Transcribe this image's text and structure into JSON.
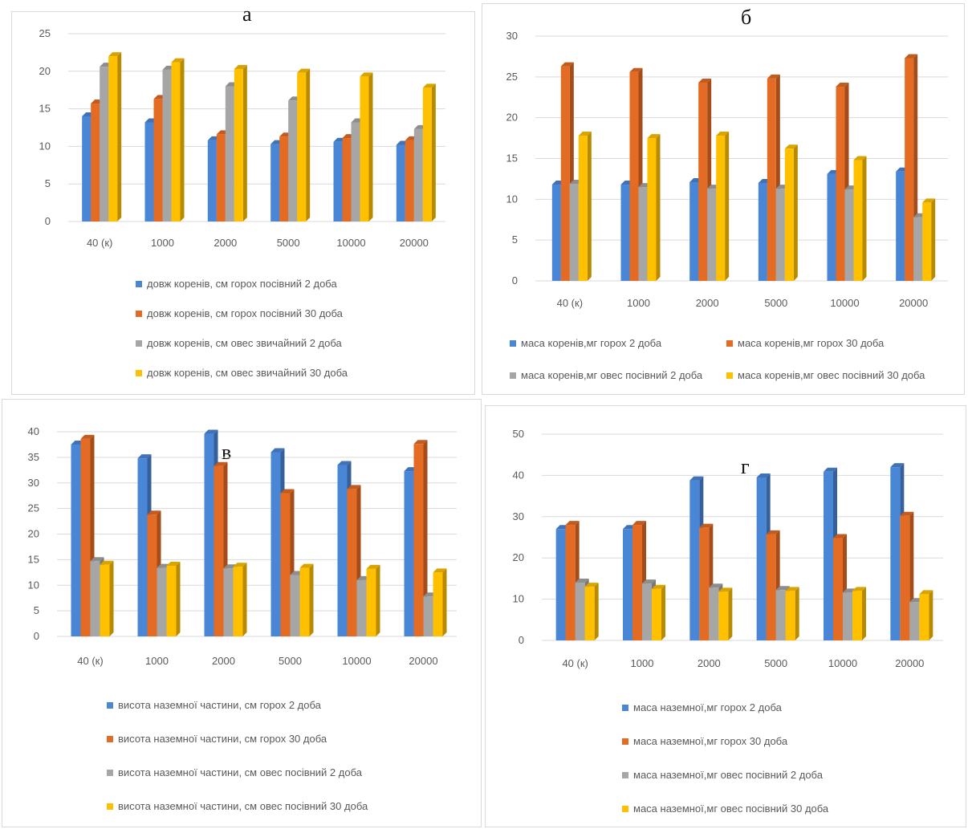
{
  "colors": {
    "blue": "#4a86d6",
    "orange": "#e46b24",
    "gray": "#a6a6a6",
    "yellow": "#ffc000",
    "grid": "#d9d9d9",
    "text": "#595959"
  },
  "chart_data": [
    {
      "type": "bar",
      "panel_label": "а",
      "categories": [
        "40 (к)",
        "1000",
        "2000",
        "5000",
        "10000",
        "20000"
      ],
      "ylim": [
        0,
        25
      ],
      "yticks": [
        "0",
        "5",
        "10",
        "15",
        "20",
        "25"
      ],
      "series": [
        {
          "name": "довж коренів, см горох посівний 2 доба",
          "values": [
            14.0,
            13.2,
            10.8,
            10.3,
            10.6,
            10.2
          ]
        },
        {
          "name": "довж коренів, см горох посівний 30 доба",
          "values": [
            15.7,
            16.3,
            11.6,
            11.3,
            11.1,
            10.8
          ]
        },
        {
          "name": "довж коренів, см овес звичайний 2 доба",
          "values": [
            20.6,
            20.2,
            18.0,
            16.1,
            13.2,
            12.3
          ]
        },
        {
          "name": "довж коренів, см овес звичайний 30 доба",
          "values": [
            22.0,
            21.2,
            20.3,
            19.8,
            19.3,
            17.8
          ]
        }
      ]
    },
    {
      "type": "bar",
      "panel_label": "б",
      "categories": [
        "40 (к)",
        "1000",
        "2000",
        "5000",
        "10000",
        "20000"
      ],
      "ylim": [
        0,
        30
      ],
      "yticks": [
        "0",
        "5",
        "10",
        "15",
        "20",
        "25",
        "30"
      ],
      "series": [
        {
          "name": "маса коренів,мг горох 2 доба",
          "values": [
            11.8,
            11.8,
            12.1,
            12.0,
            13.1,
            13.4
          ]
        },
        {
          "name": "маса коренів,мг горох 30 доба",
          "values": [
            26.3,
            25.6,
            24.3,
            24.8,
            23.8,
            27.3
          ]
        },
        {
          "name": "маса коренів,мг овес посівний 2 доба",
          "values": [
            11.9,
            11.5,
            11.3,
            11.3,
            11.2,
            7.8
          ]
        },
        {
          "name": "маса коренів,мг овес посівний 30 доба",
          "values": [
            17.8,
            17.5,
            17.8,
            16.2,
            14.8,
            9.6
          ]
        }
      ]
    },
    {
      "type": "bar",
      "panel_label": "в",
      "categories": [
        "40 (к)",
        "1000",
        "2000",
        "5000",
        "10000",
        "20000"
      ],
      "ylim": [
        0,
        40
      ],
      "yticks": [
        "0",
        "5",
        "10",
        "15",
        "20",
        "25",
        "30",
        "35",
        "40"
      ],
      "series": [
        {
          "name": "висота наземної частини, см горох 2 доба",
          "values": [
            37.5,
            34.8,
            39.6,
            36.0,
            33.5,
            32.3
          ]
        },
        {
          "name": "висота наземної частини, см горох 30 доба",
          "values": [
            38.6,
            23.8,
            33.3,
            28.0,
            28.8,
            37.6
          ]
        },
        {
          "name": "висота наземної частини, см овес посівний 2 доба",
          "values": [
            14.7,
            13.4,
            13.3,
            12.0,
            11.0,
            7.8
          ]
        },
        {
          "name": "висота наземної частини, см овес посівний 30 доба",
          "values": [
            14.0,
            13.8,
            13.6,
            13.4,
            13.2,
            12.5
          ]
        }
      ]
    },
    {
      "type": "bar",
      "panel_label": "г",
      "categories": [
        "40 (к)",
        "1000",
        "2000",
        "5000",
        "10000",
        "20000"
      ],
      "ylim": [
        0,
        50
      ],
      "yticks": [
        "0",
        "10",
        "20",
        "30",
        "40",
        "50"
      ],
      "series": [
        {
          "name": "маса наземної,мг горох 2 доба",
          "values": [
            27.0,
            27.0,
            38.8,
            39.5,
            40.9,
            42.0
          ]
        },
        {
          "name": "маса наземної,мг горох 30 доба",
          "values": [
            28.0,
            28.0,
            27.3,
            25.7,
            24.8,
            30.2
          ]
        },
        {
          "name": "маса наземної,мг овес посівний 2 доба",
          "values": [
            14.0,
            13.8,
            12.8,
            12.2,
            11.6,
            9.3
          ]
        },
        {
          "name": "маса наземної,мг овес посівний 30 доба",
          "values": [
            13.0,
            12.5,
            11.8,
            12.0,
            12.0,
            11.2
          ]
        }
      ]
    }
  ]
}
